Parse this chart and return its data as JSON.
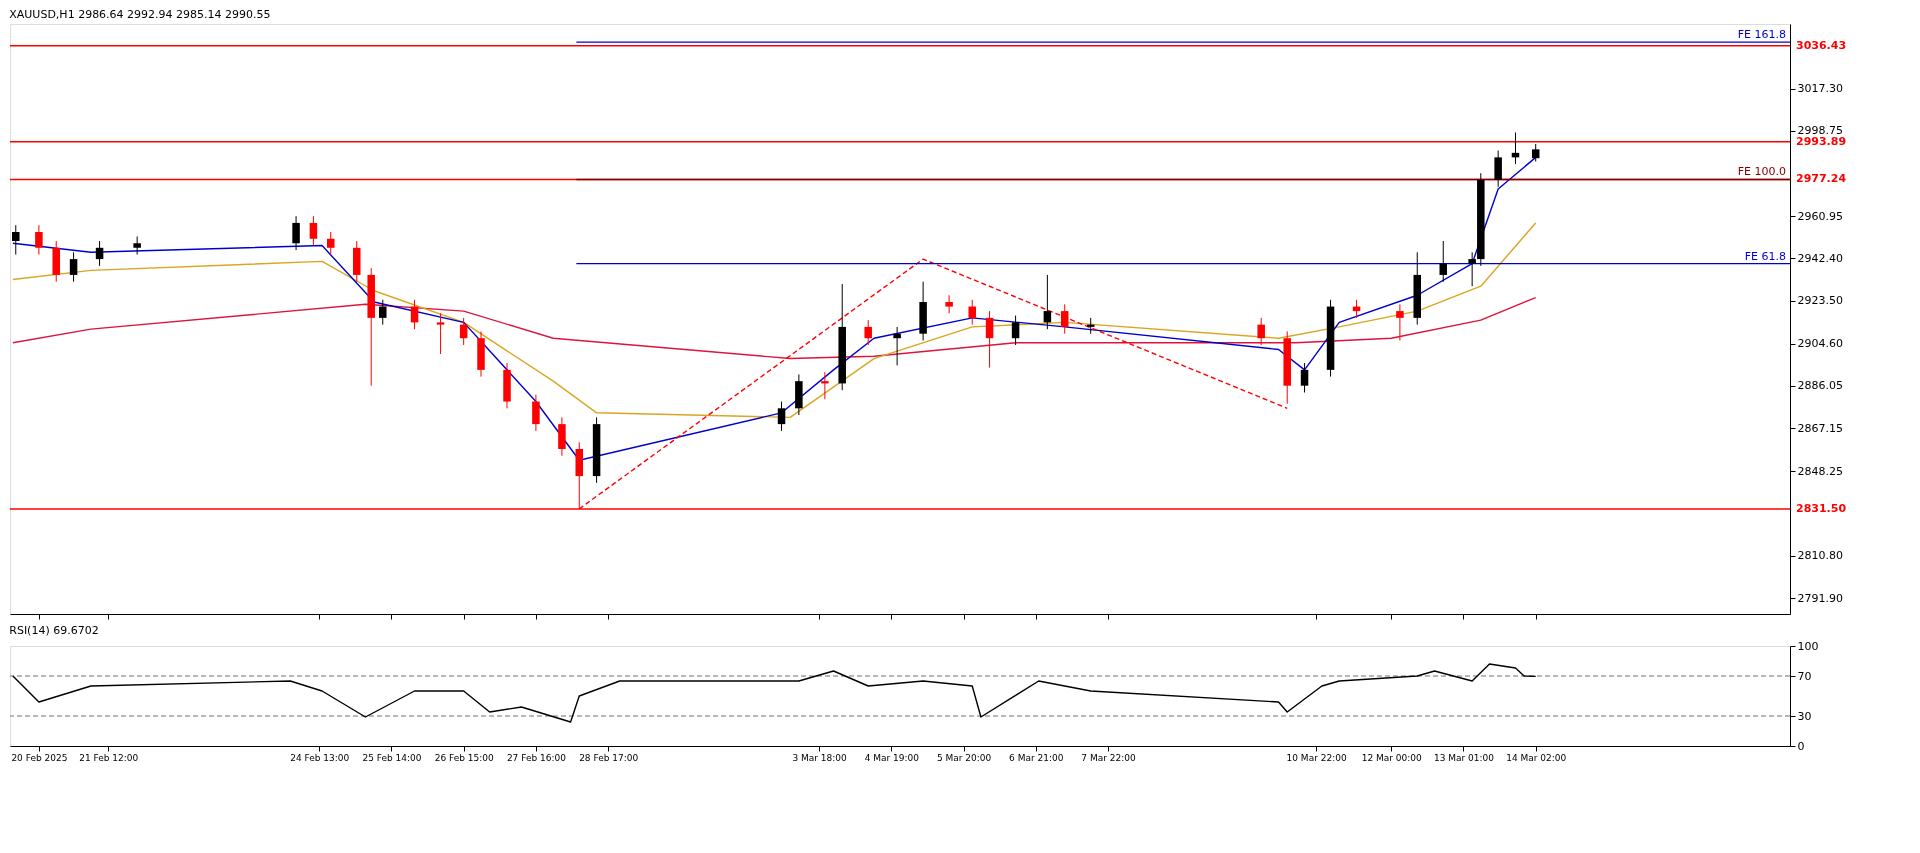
{
  "chart_data": [
    {
      "type": "candlestick",
      "title": "XAUUSD,H1  2986.64 2992.94 2985.14 2990.55",
      "x": [
        "2025-02-20T04:00",
        "2025-02-20T12:00",
        "2025-02-20T18:00",
        "2025-02-21T00:00",
        "2025-02-21T09:00",
        "2025-02-21T22:00",
        "2025-02-24T05:00",
        "2025-02-24T11:00",
        "2025-02-24T17:00",
        "2025-02-25T02:00",
        "2025-02-25T07:00",
        "2025-02-25T11:00",
        "2025-02-25T22:00",
        "2025-02-26T07:00",
        "2025-02-26T15:00",
        "2025-02-26T21:00",
        "2025-02-27T06:00",
        "2025-02-27T16:00",
        "2025-02-28T01:00",
        "2025-02-28T07:00",
        "2025-02-28T13:00",
        "2025-03-03T05:00",
        "2025-03-03T11:00",
        "2025-03-03T20:00",
        "2025-03-04T02:00",
        "2025-03-04T11:00",
        "2025-03-04T21:00",
        "2025-03-05T06:00",
        "2025-03-05T15:00",
        "2025-03-05T23:00",
        "2025-03-06T05:00",
        "2025-03-06T14:00",
        "2025-03-07T01:00",
        "2025-03-07T07:00",
        "2025-03-07T16:00",
        "2025-03-10T03:00",
        "2025-03-10T12:00",
        "2025-03-10T18:00",
        "2025-03-11T03:00",
        "2025-03-11T12:00",
        "2025-03-12T03:00",
        "2025-03-12T09:00",
        "2025-03-12T18:00",
        "2025-03-13T04:00",
        "2025-03-13T07:00",
        "2025-03-13T13:00",
        "2025-03-13T19:00",
        "2025-03-14T02:00"
      ],
      "ohlc": [
        [
          2950,
          2957,
          2944,
          2954
        ],
        [
          2954,
          2957,
          2944,
          2947
        ],
        [
          2947,
          2950,
          2932,
          2935
        ],
        [
          2935,
          2945,
          2932,
          2942
        ],
        [
          2942,
          2950,
          2939,
          2947
        ],
        [
          2947,
          2952,
          2944,
          2949
        ],
        [
          2949,
          2961,
          2946,
          2958
        ],
        [
          2958,
          2961,
          2948,
          2951
        ],
        [
          2951,
          2954,
          2944,
          2947
        ],
        [
          2947,
          2950,
          2932,
          2935
        ],
        [
          2935,
          2938,
          2886,
          2916
        ],
        [
          2916,
          2924,
          2913,
          2921
        ],
        [
          2921,
          2924,
          2911,
          2914
        ],
        [
          2914,
          2918,
          2900,
          2913
        ],
        [
          2913,
          2916,
          2904,
          2907
        ],
        [
          2907,
          2910,
          2890,
          2893
        ],
        [
          2893,
          2896,
          2876,
          2879
        ],
        [
          2879,
          2882,
          2866,
          2869
        ],
        [
          2869,
          2872,
          2855,
          2858
        ],
        [
          2858,
          2861,
          2831.5,
          2846
        ],
        [
          2846,
          2872,
          2843,
          2869
        ],
        [
          2869,
          2879,
          2866,
          2876
        ],
        [
          2876,
          2891,
          2873,
          2888
        ],
        [
          2888,
          2892,
          2880,
          2887
        ],
        [
          2887,
          2931,
          2884,
          2912
        ],
        [
          2912,
          2915,
          2904,
          2907
        ],
        [
          2907,
          2912,
          2895,
          2909
        ],
        [
          2909,
          2932,
          2906,
          2923
        ],
        [
          2923,
          2926,
          2918,
          2921
        ],
        [
          2921,
          2924,
          2913,
          2916
        ],
        [
          2916,
          2919,
          2894,
          2907
        ],
        [
          2907,
          2917,
          2904,
          2914
        ],
        [
          2914,
          2935,
          2911,
          2919
        ],
        [
          2919,
          2922,
          2909,
          2912
        ],
        [
          2912,
          2916,
          2909,
          2913
        ],
        [
          2913,
          2916,
          2904,
          2907
        ],
        [
          2907,
          2910,
          2878,
          2886
        ],
        [
          2886,
          2896,
          2883,
          2893
        ],
        [
          2893,
          2924,
          2890,
          2921
        ],
        [
          2921,
          2924,
          2916,
          2919
        ],
        [
          2919,
          2922,
          2906,
          2916
        ],
        [
          2916,
          2945,
          2913,
          2935
        ],
        [
          2935,
          2950,
          2932,
          2940
        ],
        [
          2940,
          2945,
          2930,
          2942
        ],
        [
          2942,
          2980,
          2939,
          2977
        ],
        [
          2977,
          2990,
          2974,
          2987
        ],
        [
          2987,
          2998,
          2984,
          2989
        ],
        [
          2986.64,
          2992.94,
          2985.14,
          2990.55
        ]
      ],
      "colors": [
        "#000000",
        "#ff0000",
        "#ff0000",
        "#000000",
        "#000000",
        "#000000",
        "#000000",
        "#ff0000",
        "#ff0000",
        "#ff0000",
        "#ff0000",
        "#000000",
        "#ff0000",
        "#ff0000",
        "#ff0000",
        "#ff0000",
        "#ff0000",
        "#ff0000",
        "#ff0000",
        "#ff0000",
        "#000000",
        "#000000",
        "#000000",
        "#ff0000",
        "#000000",
        "#ff0000",
        "#000000",
        "#000000",
        "#ff0000",
        "#ff0000",
        "#ff0000",
        "#000000",
        "#000000",
        "#ff0000",
        "#000000",
        "#ff0000",
        "#ff0000",
        "#000000",
        "#000000",
        "#ff0000",
        "#ff0000",
        "#000000",
        "#000000",
        "#000000",
        "#000000",
        "#000000",
        "#000000",
        "#000000"
      ],
      "series": [
        {
          "type": "line",
          "color": "#dc143c",
          "x": [
            "2025-02-20T03:00",
            "2025-02-21T06:00",
            "2025-02-25T05:00",
            "2025-02-26T15:00",
            "2025-02-27T22:00",
            "2025-03-03T08:00",
            "2025-03-04T13:00",
            "2025-03-06T14:00",
            "2025-03-10T15:00",
            "2025-03-12T00:00",
            "2025-03-13T07:00",
            "2025-03-14T02:00"
          ],
          "values": [
            2905,
            2911,
            2922,
            2919,
            2907,
            2898,
            2899,
            2905,
            2905,
            2907,
            2915,
            2925
          ]
        },
        {
          "type": "line",
          "color": "#daa520",
          "x": [
            "2025-02-20T03:00",
            "2025-02-21T06:00",
            "2025-02-24T14:00",
            "2025-02-25T08:00",
            "2025-02-26T15:00",
            "2025-02-27T22:00",
            "2025-02-28T13:00",
            "2025-03-03T08:00",
            "2025-03-04T13:00",
            "2025-03-05T23:00",
            "2025-03-07T07:00",
            "2025-03-10T09:00",
            "2025-03-11T06:00",
            "2025-03-12T09:00",
            "2025-03-13T07:00",
            "2025-03-14T02:00"
          ],
          "values": [
            2933,
            2937,
            2941,
            2928,
            2914,
            2888,
            2874,
            2872,
            2898,
            2912,
            2914,
            2907,
            2912,
            2919,
            2930,
            2958
          ]
        },
        {
          "type": "line",
          "color": "#0000cd",
          "x": [
            "2025-02-20T03:00",
            "2025-02-21T06:00",
            "2025-02-24T14:00",
            "2025-02-25T08:00",
            "2025-02-26T15:00",
            "2025-02-27T16:00",
            "2025-02-28T07:00",
            "2025-03-03T05:00",
            "2025-03-03T23:00",
            "2025-03-04T13:00",
            "2025-03-05T23:00",
            "2025-03-07T07:00",
            "2025-03-10T09:00",
            "2025-03-10T18:00",
            "2025-03-11T06:00",
            "2025-03-12T09:00",
            "2025-03-13T04:00",
            "2025-03-13T13:00",
            "2025-03-14T02:00"
          ],
          "values": [
            2949,
            2945,
            2948,
            2923,
            2914,
            2879,
            2853,
            2874,
            2893,
            2907,
            2916,
            2912,
            2902,
            2893,
            2914,
            2926,
            2940,
            2973,
            2987
          ]
        },
        {
          "type": "line",
          "color": "#ff0000",
          "line_style": "dashed",
          "x": [
            "2025-02-28T07:00",
            "2025-03-05T06:00",
            "2025-03-10T12:00"
          ],
          "values": [
            2831.5,
            2942,
            2876
          ]
        },
        {
          "type": "line",
          "name": "FE 161.8",
          "color": "#0000cd",
          "x": [
            "2025-02-28T06:00",
            "2025-03-17T18:00"
          ],
          "values": [
            3038,
            3038
          ]
        },
        {
          "type": "line",
          "name": "FE 100.0",
          "color": "#800000",
          "x": [
            "2025-02-28T06:00",
            "2025-03-17T18:00"
          ],
          "values": [
            2977.24,
            2977.24
          ]
        },
        {
          "type": "line",
          "name": "FE 61.8",
          "color": "#0000cd",
          "x": [
            "2025-02-28T06:00",
            "2025-03-17T18:00"
          ],
          "values": [
            2940,
            2940
          ]
        }
      ],
      "ref_lines": [
        {
          "axis": "y",
          "value": 3036.43,
          "label": "3036.43",
          "color": "#ff0000"
        },
        {
          "axis": "y",
          "value": 2993.89,
          "label": "2993.89",
          "color": "#ff0000"
        },
        {
          "axis": "y",
          "value": 2977.24,
          "label": "2977.24",
          "color": "#ff0000"
        },
        {
          "axis": "y",
          "value": 2831.5,
          "label": "2831.50",
          "color": "#ff0000"
        }
      ],
      "xlim": [
        "2025-02-20T02:00",
        "2025-03-17T18:00"
      ],
      "xticks": [
        {
          "value": "2025-02-20T12:00",
          "label": null
        },
        {
          "value": "2025-02-21T12:00",
          "label": null
        },
        {
          "value": "2025-02-24T13:00",
          "label": null
        },
        {
          "value": "2025-02-25T14:00",
          "label": null
        },
        {
          "value": "2025-02-26T15:00",
          "label": null
        },
        {
          "value": "2025-02-27T16:00",
          "label": null
        },
        {
          "value": "2025-02-28T17:00",
          "label": null
        },
        {
          "value": "2025-03-03T18:00",
          "label": null
        },
        {
          "value": "2025-03-04T19:00",
          "label": null
        },
        {
          "value": "2025-03-05T20:00",
          "label": null
        },
        {
          "value": "2025-03-06T21:00",
          "label": null
        },
        {
          "value": "2025-03-07T22:00",
          "label": null
        },
        {
          "value": "2025-03-10T22:00",
          "label": null
        },
        {
          "value": "2025-03-12T00:00",
          "label": null
        },
        {
          "value": "2025-03-13T01:00",
          "label": null
        },
        {
          "value": "2025-03-14T02:00",
          "label": null
        }
      ],
      "ylim": [
        2785,
        3046
      ],
      "yticks": [
        {
          "value": 3017.3,
          "label": "3017.30"
        },
        {
          "value": 2998.75,
          "label": "2998.75"
        },
        {
          "value": 2960.95,
          "label": "2960.95"
        },
        {
          "value": 2942.4,
          "label": "2942.40"
        },
        {
          "value": 2923.5,
          "label": "2923.50"
        },
        {
          "value": 2904.6,
          "label": "2904.60"
        },
        {
          "value": 2886.05,
          "label": "2886.05"
        },
        {
          "value": 2867.15,
          "label": "2867.15"
        },
        {
          "value": 2848.25,
          "label": "2848.25"
        },
        {
          "value": 2810.8,
          "label": "2810.80"
        },
        {
          "value": 2791.9,
          "label": "2791.90"
        }
      ],
      "tick_labels": "y"
    },
    {
      "type": "line",
      "title": "RSI(14) 69.6702",
      "series": [
        {
          "color": "#000000",
          "x": [
            "2025-02-20T03:00",
            "2025-02-20T12:00",
            "2025-02-21T06:00",
            "2025-02-24T03:00",
            "2025-02-24T14:00",
            "2025-02-25T05:00",
            "2025-02-25T22:00",
            "2025-02-26T15:00",
            "2025-02-27T00:00",
            "2025-02-27T11:00",
            "2025-02-28T04:00",
            "2025-02-28T07:00",
            "2025-02-28T21:00",
            "2025-03-03T11:00",
            "2025-03-03T23:00",
            "2025-03-04T11:00",
            "2025-03-05T06:00",
            "2025-03-05T23:00",
            "2025-03-06T02:00",
            "2025-03-06T22:00",
            "2025-03-07T16:00",
            "2025-03-10T09:00",
            "2025-03-10T12:00",
            "2025-03-11T00:00",
            "2025-03-11T06:00",
            "2025-03-12T09:00",
            "2025-03-12T15:00",
            "2025-03-13T04:00",
            "2025-03-13T10:00",
            "2025-03-13T19:00",
            "2025-03-13T22:00",
            "2025-03-14T02:00"
          ],
          "values": [
            70,
            44,
            60,
            65,
            55,
            29,
            55,
            55,
            34,
            39,
            24,
            50,
            65,
            65,
            75,
            60,
            65,
            60,
            29,
            65,
            55,
            44,
            34,
            60,
            65,
            70,
            75,
            65,
            82,
            78,
            70,
            69.6702
          ]
        }
      ],
      "ref_lines": [
        {
          "axis": "y",
          "value": 70,
          "color": "#a0a0a0",
          "line_style": "dashed"
        },
        {
          "axis": "y",
          "value": 30,
          "color": "#a0a0a0",
          "line_style": "dashed"
        }
      ],
      "xlim": [
        "2025-02-20T02:00",
        "2025-03-17T18:00"
      ],
      "xticks": [
        {
          "value": "2025-02-20T12:00",
          "label": "20 Feb 2025"
        },
        {
          "value": "2025-02-21T12:00",
          "label": "21 Feb 12:00"
        },
        {
          "value": "2025-02-24T13:00",
          "label": "24 Feb 13:00"
        },
        {
          "value": "2025-02-25T14:00",
          "label": "25 Feb 14:00"
        },
        {
          "value": "2025-02-26T15:00",
          "label": "26 Feb 15:00"
        },
        {
          "value": "2025-02-27T16:00",
          "label": "27 Feb 16:00"
        },
        {
          "value": "2025-02-28T17:00",
          "label": "28 Feb 17:00"
        },
        {
          "value": "2025-03-03T18:00",
          "label": "3 Mar 18:00"
        },
        {
          "value": "2025-03-04T19:00",
          "label": "4 Mar 19:00"
        },
        {
          "value": "2025-03-05T20:00",
          "label": "5 Mar 20:00"
        },
        {
          "value": "2025-03-06T21:00",
          "label": "6 Mar 21:00"
        },
        {
          "value": "2025-03-07T22:00",
          "label": "7 Mar 22:00"
        },
        {
          "value": "2025-03-10T22:00",
          "label": "10 Mar 22:00"
        },
        {
          "value": "2025-03-12T00:00",
          "label": "12 Mar 00:00"
        },
        {
          "value": "2025-03-13T01:00",
          "label": "13 Mar 01:00"
        },
        {
          "value": "2025-03-14T02:00",
          "label": "14 Mar 02:00"
        }
      ],
      "ylim": [
        0,
        100
      ],
      "yticks": [
        0,
        30,
        70,
        100
      ]
    }
  ]
}
